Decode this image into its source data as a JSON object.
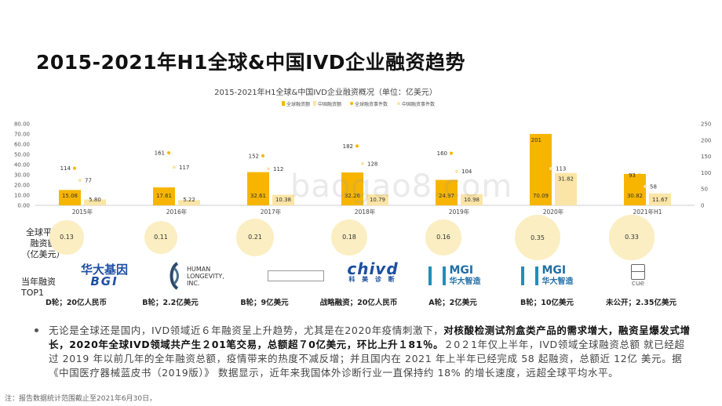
{
  "page": {
    "title": "2015-2021年H1全球&中国IVD企业融资趋势",
    "watermark": "baogao8.com"
  },
  "chart_data": {
    "type": "bar",
    "title": "2015-2021年H1全球&中国IVD企业融资概况（单位：亿美元）",
    "categories": [
      "2015年",
      "2016年",
      "2017年",
      "2018年",
      "2019年",
      "2020年",
      "2021年H1"
    ],
    "series": [
      {
        "name": "全球融资额",
        "kind": "bar",
        "axis": "left",
        "color": "#f7b500",
        "values": [
          15.08,
          17.61,
          32.61,
          32.26,
          24.97,
          70.09,
          30.82
        ]
      },
      {
        "name": "中国融资额",
        "kind": "bar",
        "axis": "left",
        "color": "#fbe5a6",
        "values": [
          5.8,
          5.22,
          10.38,
          10.79,
          10.98,
          31.82,
          11.67
        ]
      },
      {
        "name": "全球融资事件数",
        "kind": "point",
        "axis": "right",
        "color": "#f7b500",
        "values": [
          114,
          161,
          152,
          182,
          160,
          201,
          93
        ]
      },
      {
        "name": "中国融资事件数",
        "kind": "point",
        "axis": "right",
        "color": "#fbe5a6",
        "values": [
          77,
          117,
          112,
          128,
          104,
          113,
          58
        ]
      }
    ],
    "value_labels": {
      "global_amount": [
        "15.08",
        "17.61",
        "32.61",
        "32.26",
        "24.97",
        "70.09",
        "30.82"
      ],
      "china_amount": [
        "5.80",
        "5.22",
        "10.38",
        "10.79",
        "10.98",
        "31.82",
        "11.67"
      ]
    },
    "ylim_left": [
      0,
      80
    ],
    "yticks_left": [
      "0.00",
      "10.00",
      "20.00",
      "30.00",
      "40.00",
      "50.00",
      "60.00",
      "70.00",
      "80.00"
    ],
    "ylim_right": [
      0,
      250
    ],
    "yticks_right": [
      "0",
      "50",
      "100",
      "150",
      "200",
      "250"
    ],
    "legend_position": "top-center"
  },
  "avg_row": {
    "label_lines": [
      "全球平均",
      "融资额",
      "（亿美元）"
    ],
    "values": [
      "0.13",
      "0.11",
      "0.21",
      "0.18",
      "0.16",
      "0.35",
      "0.33"
    ]
  },
  "top1_row": {
    "label_lines": [
      "当年融资",
      "TOP1"
    ],
    "companies": [
      {
        "logo": "华大基因 BGI",
        "deal": "D轮；20亿人民币"
      },
      {
        "logo": "HUMAN LONGEVITY, INC.",
        "deal": "B轮；2.2亿美元"
      },
      {
        "logo": "",
        "deal": "B轮；9亿美元"
      },
      {
        "logo": "chivd 科美诊断",
        "deal": "战略融资；20亿人民币"
      },
      {
        "logo": "MGI 华大智造",
        "deal": "A轮；2亿美元"
      },
      {
        "logo": "MGI 华大智造",
        "deal": "B轮；10亿美元"
      },
      {
        "logo": "cue",
        "deal": "未公开；2.35亿美元"
      }
    ]
  },
  "paragraph": {
    "part1": "无论是全球还是国内，IVD领域近６年融资呈上升趋势，尤其是在2020年疫情刺激下，",
    "part2": "对核酸检测试剂盒类产品的需求增大，融资呈爆发式增长，2020年全球IVD领域共产生２01笔交易，总额超７0亿美元，环比上升１81％。",
    "part3": "２0２1年仅上半年，IVD领域全球融资总额 就已经超过 2019 年以前几年的全年融资总额，疫情带来的热度不减反增；并且国内在 2021 年上半年已经完成 58 起融资，总额近 12亿 美元。据《中国医疗器械蓝皮书（2019版）》 数据显示，近年来我国体外诊断行业一直保持约 18% 的增长速度，远超全球平均水平。"
  },
  "footnote": "注：报告数据统计范围截止至2021年6月30日，"
}
